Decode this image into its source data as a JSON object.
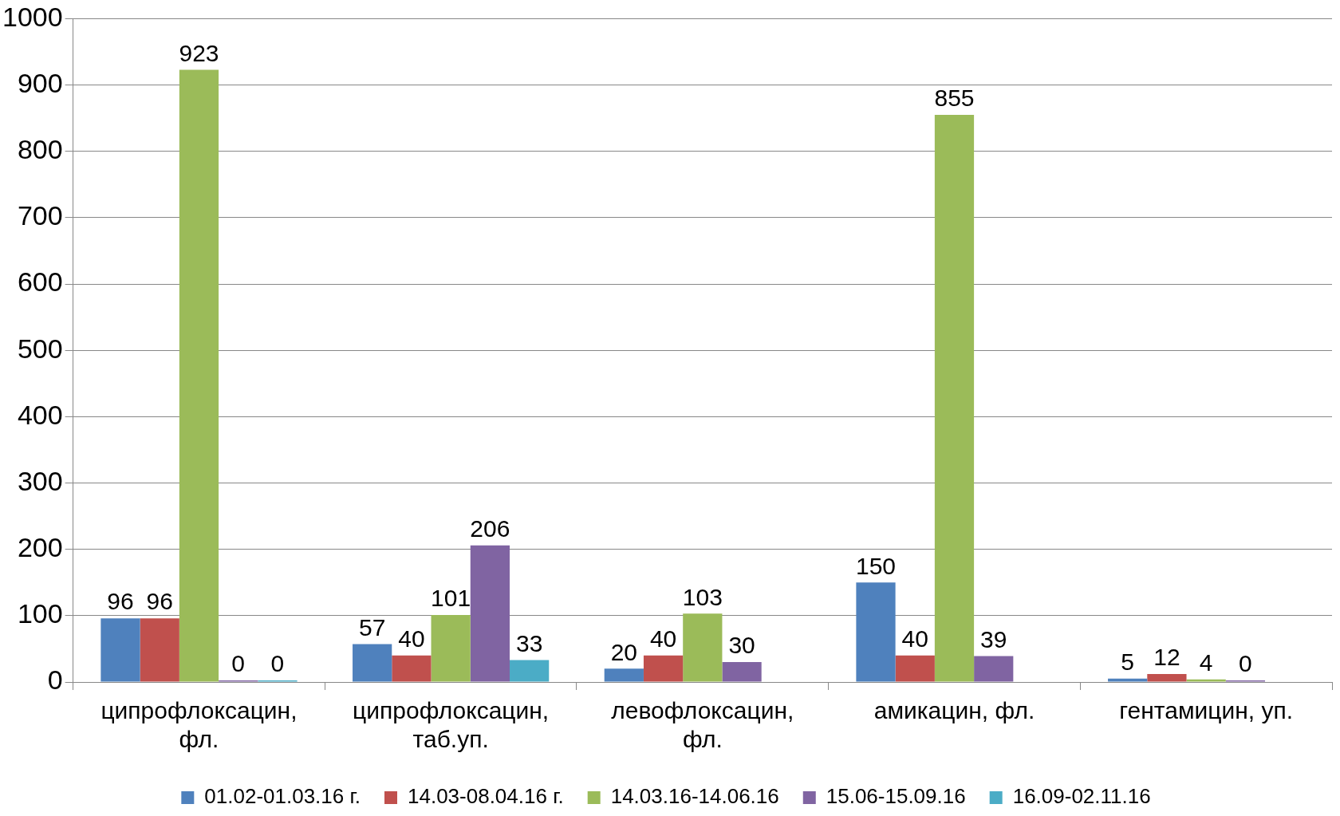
{
  "chart_data": {
    "type": "bar",
    "categories": [
      "ципрофлоксацин, фл.",
      "ципрофлоксацин, таб.уп.",
      "левофлоксацин, фл.",
      "амикацин, фл.",
      "гентамицин, уп."
    ],
    "series": [
      {
        "name": "01.02-01.03.16 г.",
        "color": "#4f81bd",
        "values": [
          96,
          57,
          20,
          150,
          5
        ]
      },
      {
        "name": "14.03-08.04.16 г.",
        "color": "#c0504d",
        "values": [
          96,
          40,
          40,
          40,
          12
        ]
      },
      {
        "name": "14.03.16-14.06.16",
        "color": "#9bbb59",
        "values": [
          923,
          101,
          103,
          855,
          4
        ]
      },
      {
        "name": "15.06-15.09.16",
        "color": "#8064a2",
        "values": [
          0,
          206,
          30,
          39,
          0
        ]
      },
      {
        "name": "16.09-02.11.16",
        "color": "#4bacc6",
        "values": [
          0,
          33,
          null,
          null,
          null
        ]
      }
    ],
    "ylim": [
      0,
      1000
    ],
    "yticks": [
      0,
      100,
      200,
      300,
      400,
      500,
      600,
      700,
      800,
      900,
      1000
    ],
    "grid": "y",
    "legend": "bottom",
    "data_labels": true
  }
}
